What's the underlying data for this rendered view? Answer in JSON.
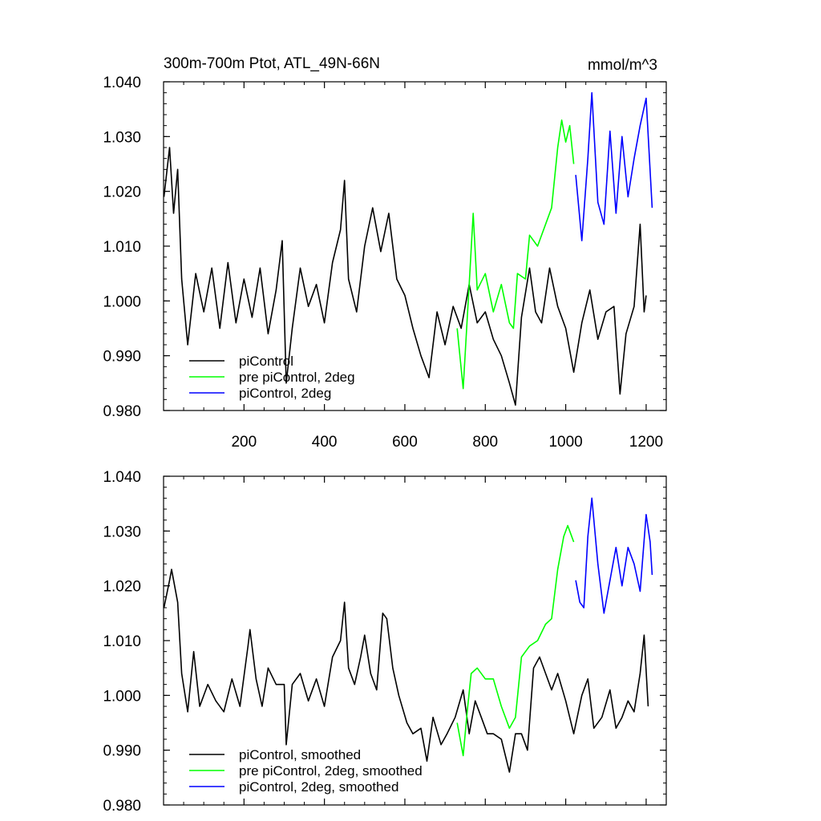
{
  "chart_data": [
    {
      "type": "line",
      "title": "300m-700m Ptot, ATL_49N-66N",
      "units": "mmol/m^3",
      "xlim": [
        0,
        1250
      ],
      "ylim": [
        0.98,
        1.04
      ],
      "xticks": [
        "200",
        "400",
        "600",
        "800",
        "1000",
        "1200"
      ],
      "yticks": [
        "0.980",
        "0.990",
        "1.000",
        "1.010",
        "1.020",
        "1.030",
        "1.040"
      ],
      "grid": false,
      "legend_position": "bottom-left",
      "series": [
        {
          "name": "piControl",
          "color": "#000000",
          "points": [
            [
              1,
              1.019
            ],
            [
              15,
              1.028
            ],
            [
              25,
              1.016
            ],
            [
              35,
              1.024
            ],
            [
              45,
              1.004
            ],
            [
              60,
              0.992
            ],
            [
              80,
              1.005
            ],
            [
              100,
              0.998
            ],
            [
              120,
              1.006
            ],
            [
              140,
              0.995
            ],
            [
              160,
              1.007
            ],
            [
              180,
              0.996
            ],
            [
              200,
              1.004
            ],
            [
              220,
              0.997
            ],
            [
              240,
              1.006
            ],
            [
              260,
              0.994
            ],
            [
              280,
              1.002
            ],
            [
              295,
              1.011
            ],
            [
              305,
              0.985
            ],
            [
              320,
              0.995
            ],
            [
              340,
              1.006
            ],
            [
              360,
              0.999
            ],
            [
              380,
              1.003
            ],
            [
              400,
              0.996
            ],
            [
              420,
              1.007
            ],
            [
              440,
              1.013
            ],
            [
              450,
              1.022
            ],
            [
              460,
              1.004
            ],
            [
              480,
              0.998
            ],
            [
              500,
              1.01
            ],
            [
              520,
              1.017
            ],
            [
              540,
              1.009
            ],
            [
              560,
              1.016
            ],
            [
              580,
              1.004
            ],
            [
              600,
              1.001
            ],
            [
              620,
              0.995
            ],
            [
              640,
              0.99
            ],
            [
              660,
              0.986
            ],
            [
              680,
              0.998
            ],
            [
              700,
              0.992
            ],
            [
              720,
              0.999
            ],
            [
              740,
              0.995
            ],
            [
              760,
              1.003
            ],
            [
              780,
              0.996
            ],
            [
              800,
              0.998
            ],
            [
              820,
              0.993
            ],
            [
              840,
              0.99
            ],
            [
              860,
              0.985
            ],
            [
              875,
              0.981
            ],
            [
              890,
              0.997
            ],
            [
              910,
              1.006
            ],
            [
              925,
              0.998
            ],
            [
              940,
              0.996
            ],
            [
              960,
              1.006
            ],
            [
              980,
              0.999
            ],
            [
              1000,
              0.995
            ],
            [
              1020,
              0.987
            ],
            [
              1040,
              0.996
            ],
            [
              1060,
              1.002
            ],
            [
              1080,
              0.993
            ],
            [
              1100,
              0.998
            ],
            [
              1120,
              0.999
            ],
            [
              1135,
              0.983
            ],
            [
              1150,
              0.994
            ],
            [
              1170,
              0.999
            ],
            [
              1185,
              1.014
            ],
            [
              1195,
              0.998
            ],
            [
              1200,
              1.001
            ]
          ]
        },
        {
          "name": "pre piControl, 2deg",
          "color": "#00ff00",
          "points": [
            [
              730,
              0.995
            ],
            [
              745,
              0.984
            ],
            [
              760,
              1.003
            ],
            [
              770,
              1.016
            ],
            [
              780,
              1.002
            ],
            [
              800,
              1.005
            ],
            [
              820,
              0.998
            ],
            [
              840,
              1.003
            ],
            [
              860,
              0.996
            ],
            [
              870,
              0.995
            ],
            [
              880,
              1.005
            ],
            [
              900,
              1.004
            ],
            [
              910,
              1.012
            ],
            [
              930,
              1.01
            ],
            [
              950,
              1.014
            ],
            [
              965,
              1.017
            ],
            [
              980,
              1.028
            ],
            [
              990,
              1.033
            ],
            [
              1000,
              1.029
            ],
            [
              1010,
              1.032
            ],
            [
              1020,
              1.025
            ]
          ]
        },
        {
          "name": "piControl, 2deg",
          "color": "#0000ff",
          "points": [
            [
              1025,
              1.023
            ],
            [
              1040,
              1.011
            ],
            [
              1055,
              1.026
            ],
            [
              1065,
              1.038
            ],
            [
              1080,
              1.018
            ],
            [
              1095,
              1.014
            ],
            [
              1110,
              1.031
            ],
            [
              1125,
              1.016
            ],
            [
              1140,
              1.03
            ],
            [
              1155,
              1.019
            ],
            [
              1170,
              1.026
            ],
            [
              1185,
              1.032
            ],
            [
              1200,
              1.037
            ],
            [
              1215,
              1.017
            ]
          ]
        }
      ]
    },
    {
      "type": "line",
      "xlim": [
        0,
        1250
      ],
      "ylim": [
        0.98,
        1.04
      ],
      "yticks": [
        "0.980",
        "0.990",
        "1.000",
        "1.010",
        "1.020",
        "1.030",
        "1.040"
      ],
      "grid": false,
      "legend_position": "bottom-left",
      "series": [
        {
          "name": "piControl, smoothed",
          "color": "#000000",
          "points": [
            [
              1,
              1.016
            ],
            [
              15,
              1.021
            ],
            [
              20,
              1.023
            ],
            [
              35,
              1.017
            ],
            [
              45,
              1.004
            ],
            [
              60,
              0.997
            ],
            [
              75,
              1.008
            ],
            [
              90,
              0.998
            ],
            [
              110,
              1.002
            ],
            [
              130,
              0.999
            ],
            [
              150,
              0.997
            ],
            [
              170,
              1.003
            ],
            [
              190,
              0.998
            ],
            [
              210,
              1.009
            ],
            [
              215,
              1.012
            ],
            [
              230,
              1.003
            ],
            [
              245,
              0.998
            ],
            [
              260,
              1.005
            ],
            [
              280,
              1.002
            ],
            [
              300,
              1.002
            ],
            [
              305,
              0.991
            ],
            [
              320,
              1.002
            ],
            [
              340,
              1.004
            ],
            [
              360,
              0.999
            ],
            [
              380,
              1.003
            ],
            [
              400,
              0.998
            ],
            [
              420,
              1.007
            ],
            [
              440,
              1.01
            ],
            [
              450,
              1.017
            ],
            [
              460,
              1.005
            ],
            [
              475,
              1.002
            ],
            [
              490,
              1.007
            ],
            [
              500,
              1.011
            ],
            [
              515,
              1.004
            ],
            [
              530,
              1.001
            ],
            [
              545,
              1.015
            ],
            [
              555,
              1.014
            ],
            [
              570,
              1.005
            ],
            [
              585,
              1.0
            ],
            [
              605,
              0.995
            ],
            [
              620,
              0.993
            ],
            [
              640,
              0.994
            ],
            [
              655,
              0.988
            ],
            [
              670,
              0.996
            ],
            [
              690,
              0.991
            ],
            [
              705,
              0.993
            ],
            [
              725,
              0.996
            ],
            [
              745,
              1.001
            ],
            [
              760,
              0.993
            ],
            [
              775,
              0.999
            ],
            [
              790,
              0.996
            ],
            [
              805,
              0.993
            ],
            [
              820,
              0.993
            ],
            [
              840,
              0.992
            ],
            [
              860,
              0.986
            ],
            [
              875,
              0.993
            ],
            [
              890,
              0.993
            ],
            [
              905,
              0.99
            ],
            [
              920,
              1.005
            ],
            [
              935,
              1.007
            ],
            [
              950,
              1.004
            ],
            [
              965,
              1.001
            ],
            [
              980,
              1.004
            ],
            [
              1000,
              0.999
            ],
            [
              1020,
              0.993
            ],
            [
              1040,
              1.0
            ],
            [
              1055,
              1.003
            ],
            [
              1070,
              0.994
            ],
            [
              1090,
              0.996
            ],
            [
              1110,
              1.001
            ],
            [
              1125,
              0.994
            ],
            [
              1140,
              0.996
            ],
            [
              1155,
              0.999
            ],
            [
              1170,
              0.997
            ],
            [
              1185,
              1.004
            ],
            [
              1195,
              1.011
            ],
            [
              1205,
              0.998
            ]
          ]
        },
        {
          "name": "pre piControl, 2deg, smoothed",
          "color": "#00ff00",
          "points": [
            [
              730,
              0.995
            ],
            [
              745,
              0.989
            ],
            [
              755,
              0.997
            ],
            [
              765,
              1.004
            ],
            [
              780,
              1.005
            ],
            [
              800,
              1.003
            ],
            [
              820,
              1.003
            ],
            [
              840,
              0.998
            ],
            [
              860,
              0.994
            ],
            [
              875,
              0.996
            ],
            [
              890,
              1.007
            ],
            [
              910,
              1.009
            ],
            [
              930,
              1.01
            ],
            [
              950,
              1.013
            ],
            [
              965,
              1.014
            ],
            [
              980,
              1.023
            ],
            [
              995,
              1.029
            ],
            [
              1005,
              1.031
            ],
            [
              1015,
              1.029
            ],
            [
              1020,
              1.028
            ]
          ]
        },
        {
          "name": "piControl, 2deg, smoothed",
          "color": "#0000ff",
          "points": [
            [
              1025,
              1.021
            ],
            [
              1035,
              1.017
            ],
            [
              1045,
              1.016
            ],
            [
              1055,
              1.029
            ],
            [
              1065,
              1.036
            ],
            [
              1080,
              1.024
            ],
            [
              1095,
              1.015
            ],
            [
              1110,
              1.021
            ],
            [
              1125,
              1.027
            ],
            [
              1140,
              1.02
            ],
            [
              1155,
              1.027
            ],
            [
              1170,
              1.024
            ],
            [
              1185,
              1.019
            ],
            [
              1200,
              1.033
            ],
            [
              1210,
              1.028
            ],
            [
              1215,
              1.022
            ]
          ]
        }
      ]
    }
  ]
}
